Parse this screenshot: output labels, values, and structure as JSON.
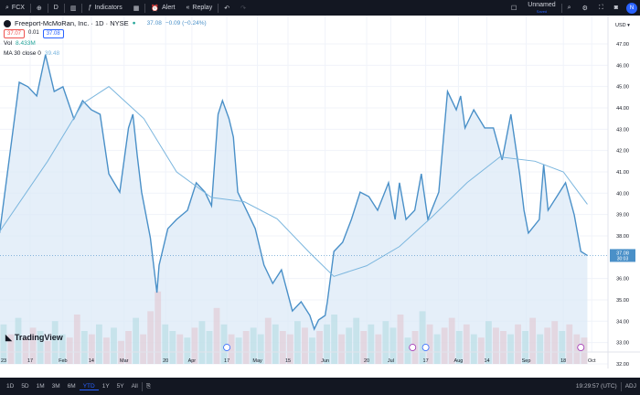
{
  "toolbar": {
    "symbol": "FCX",
    "interval": "D",
    "indicators": "Indicators",
    "alert": "Alert",
    "replay": "Replay",
    "layout_name": "Unnamed",
    "layout_status": "Saved",
    "avatar": "N"
  },
  "legend": {
    "title": "Freeport-McMoRan, Inc. · 1D · NYSE",
    "price": "37.08",
    "change": "−0.09 (−0.24%)",
    "bid": "37.07",
    "spread": "0.01",
    "ask": "37.08",
    "vol_label": "Vol",
    "vol_value": "8.433M",
    "ma_label": "MA 30 close 0",
    "ma_value": "39.48"
  },
  "price_axis": {
    "currency": "USD",
    "labels": [
      "47.00",
      "46.00",
      "45.00",
      "44.00",
      "43.00",
      "42.00",
      "41.00",
      "40.00",
      "39.00",
      "38.00",
      "36.00",
      "35.00",
      "34.00",
      "33.00",
      "32.00"
    ],
    "last_price": "37.08",
    "countdown": "30:03"
  },
  "colors": {
    "line": "#4a90c8",
    "area": "#dceaf7",
    "ma": "#7bb6de",
    "up": "#26a69a",
    "down": "#ef5350",
    "accent": "#2962ff"
  },
  "chart_data": {
    "type": "area",
    "ylim": [
      32,
      47.5
    ],
    "x_ticks": [
      {
        "d": "01-01",
        "label": "23"
      },
      {
        "d": "01-17",
        "label": "17"
      },
      {
        "d": "02-01",
        "label": "Feb"
      },
      {
        "d": "02-14",
        "label": "14"
      },
      {
        "d": "03-01",
        "label": "Mar"
      },
      {
        "d": "03-20",
        "label": "20"
      },
      {
        "d": "04-01",
        "label": "Apr"
      },
      {
        "d": "04-17",
        "label": "17"
      },
      {
        "d": "05-01",
        "label": "May"
      },
      {
        "d": "05-15",
        "label": "15"
      },
      {
        "d": "06-01",
        "label": "Jun"
      },
      {
        "d": "06-20",
        "label": "20"
      },
      {
        "d": "07-01",
        "label": "Jul"
      },
      {
        "d": "07-17",
        "label": "17"
      },
      {
        "d": "08-01",
        "label": "Aug"
      },
      {
        "d": "08-14",
        "label": "14"
      },
      {
        "d": "09-01",
        "label": "Sep"
      },
      {
        "d": "09-18",
        "label": "18"
      },
      {
        "d": "10-01",
        "label": "Oct"
      }
    ],
    "close": [
      [
        "01-03",
        38.13
      ],
      [
        "01-12",
        45.2
      ],
      [
        "01-16",
        44.99
      ],
      [
        "01-20",
        44.56
      ],
      [
        "01-24",
        46.49
      ],
      [
        "01-28",
        44.77
      ],
      [
        "02-01",
        44.99
      ],
      [
        "02-06",
        43.49
      ],
      [
        "02-10",
        44.34
      ],
      [
        "02-14",
        43.91
      ],
      [
        "02-18",
        43.7
      ],
      [
        "02-22",
        40.91
      ],
      [
        "02-27",
        40.05
      ],
      [
        "03-03",
        43.06
      ],
      [
        "03-05",
        43.7
      ],
      [
        "03-07",
        41.77
      ],
      [
        "03-09",
        40.05
      ],
      [
        "03-13",
        37.91
      ],
      [
        "03-16",
        35.34
      ],
      [
        "03-17",
        36.63
      ],
      [
        "03-21",
        38.34
      ],
      [
        "03-25",
        38.77
      ],
      [
        "03-30",
        39.2
      ],
      [
        "04-03",
        40.49
      ],
      [
        "04-07",
        40.05
      ],
      [
        "04-10",
        39.41
      ],
      [
        "04-13",
        43.7
      ],
      [
        "04-15",
        44.34
      ],
      [
        "04-18",
        43.49
      ],
      [
        "04-20",
        42.63
      ],
      [
        "04-22",
        40.05
      ],
      [
        "04-26",
        39.2
      ],
      [
        "04-30",
        38.34
      ],
      [
        "05-04",
        36.63
      ],
      [
        "05-08",
        35.77
      ],
      [
        "05-12",
        36.41
      ],
      [
        "05-17",
        34.48
      ],
      [
        "05-21",
        34.91
      ],
      [
        "05-25",
        34.27
      ],
      [
        "05-27",
        33.63
      ],
      [
        "05-29",
        34.06
      ],
      [
        "06-01",
        34.27
      ],
      [
        "06-02",
        34.91
      ],
      [
        "06-05",
        37.27
      ],
      [
        "06-09",
        37.7
      ],
      [
        "06-13",
        38.77
      ],
      [
        "06-17",
        40.05
      ],
      [
        "06-21",
        39.84
      ],
      [
        "06-25",
        39.2
      ],
      [
        "06-30",
        40.49
      ],
      [
        "07-03",
        38.77
      ],
      [
        "07-05",
        40.49
      ],
      [
        "07-08",
        38.77
      ],
      [
        "07-12",
        39.2
      ],
      [
        "07-15",
        40.91
      ],
      [
        "07-18",
        38.77
      ],
      [
        "07-23",
        40.05
      ],
      [
        "07-27",
        44.77
      ],
      [
        "07-31",
        43.91
      ],
      [
        "08-02",
        44.56
      ],
      [
        "08-04",
        43.06
      ],
      [
        "08-08",
        43.91
      ],
      [
        "08-13",
        43.06
      ],
      [
        "08-17",
        43.06
      ],
      [
        "08-21",
        41.56
      ],
      [
        "08-25",
        43.7
      ],
      [
        "08-29",
        40.91
      ],
      [
        "08-31",
        39.2
      ],
      [
        "09-02",
        38.13
      ],
      [
        "09-07",
        38.77
      ],
      [
        "09-09",
        41.34
      ],
      [
        "09-11",
        39.2
      ],
      [
        "09-15",
        39.84
      ],
      [
        "09-19",
        40.49
      ],
      [
        "09-23",
        38.98
      ],
      [
        "09-26",
        37.27
      ],
      [
        "09-29",
        37.08
      ]
    ],
    "ma30": [
      [
        "01-03",
        38.2
      ],
      [
        "01-25",
        41.5
      ],
      [
        "02-10",
        44.2
      ],
      [
        "02-22",
        45.0
      ],
      [
        "03-10",
        43.5
      ],
      [
        "03-25",
        41.0
      ],
      [
        "04-10",
        39.8
      ],
      [
        "04-25",
        39.6
      ],
      [
        "05-10",
        38.8
      ],
      [
        "05-25",
        37.2
      ],
      [
        "06-05",
        36.1
      ],
      [
        "06-20",
        36.6
      ],
      [
        "07-05",
        37.5
      ],
      [
        "07-20",
        38.9
      ],
      [
        "08-05",
        40.5
      ],
      [
        "08-20",
        41.7
      ],
      [
        "09-05",
        41.5
      ],
      [
        "09-18",
        41.0
      ],
      [
        "09-29",
        39.48
      ]
    ],
    "volume": [
      12,
      9,
      14,
      8,
      11,
      10,
      7,
      13,
      9,
      8,
      15,
      10,
      9,
      12,
      8,
      11,
      7,
      10,
      14,
      9,
      16,
      22,
      12,
      10,
      9,
      8,
      11,
      13,
      10,
      17,
      12,
      9,
      8,
      10,
      11,
      9,
      14,
      12,
      10,
      9,
      13,
      11,
      8,
      10,
      12,
      15,
      9,
      11,
      14,
      10,
      12,
      9,
      13,
      11,
      15,
      8,
      10,
      16,
      12,
      9,
      11,
      14,
      10,
      12,
      9,
      8,
      13,
      11,
      10,
      9,
      12,
      10,
      14,
      9,
      11,
      13,
      10,
      12,
      9,
      8
    ],
    "volume_up": [
      1,
      0,
      1,
      0,
      0,
      1,
      0,
      1,
      1,
      0,
      0,
      1,
      0,
      1,
      0,
      1,
      0,
      0,
      1,
      0,
      0,
      0,
      1,
      1,
      0,
      1,
      0,
      1,
      1,
      0,
      1,
      0,
      1,
      0,
      1,
      1,
      0,
      1,
      0,
      0,
      1,
      0,
      1,
      0,
      1,
      1,
      0,
      1,
      1,
      0,
      1,
      0,
      1,
      1,
      0,
      1,
      0,
      1,
      0,
      1,
      0,
      0,
      1,
      0,
      1,
      0,
      1,
      0,
      0,
      1,
      0,
      1,
      0,
      1,
      0,
      0,
      1,
      0,
      0,
      0
    ]
  },
  "timeframes": [
    "1D",
    "5D",
    "1M",
    "3M",
    "6M",
    "YTD",
    "1Y",
    "5Y",
    "All"
  ],
  "active_timeframe": "YTD",
  "clock": "19:29:57 (UTC)",
  "adj": "ADJ",
  "logo": "TradingView"
}
